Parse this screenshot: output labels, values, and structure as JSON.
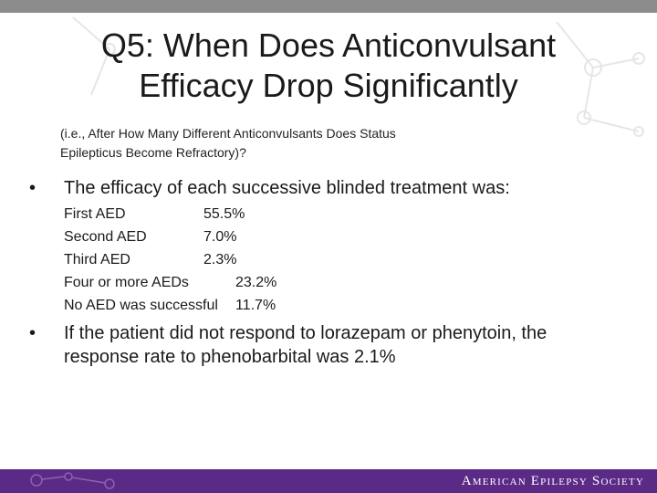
{
  "slide": {
    "title_line1": "Q5: When Does Anticonvulsant",
    "title_line2": "Efficacy Drop Significantly",
    "subtitle_line1": "(i.e., After How Many Different Anticonvulsants Does Status",
    "subtitle_line2": "Epilepticus Become Refractory)?",
    "bullet1": "The efficacy of each successive blinded treatment was:",
    "efficacy": [
      {
        "label": "First AED",
        "value": "55.5%"
      },
      {
        "label": "Second AED",
        "value": "7.0%"
      },
      {
        "label": "Third AED",
        "value": "2.3%"
      },
      {
        "label": "Four or more AEDs",
        "value": "23.2%"
      },
      {
        "label": "No AED was successful",
        "value": "11.7%"
      }
    ],
    "bullet2_line1": "If the patient did not respond to lorazepam or phenytoin, the",
    "bullet2_line2": "response rate to phenobarbital was 2.1%",
    "bullet_glyph": "•"
  },
  "footer": {
    "org_name": "American Epilepsy Society"
  },
  "colors": {
    "top_bar": "#8c8c8c",
    "footer_bar": "#5b2a86",
    "text": "#1a1a1a",
    "decoration": "#e3e3e3"
  }
}
